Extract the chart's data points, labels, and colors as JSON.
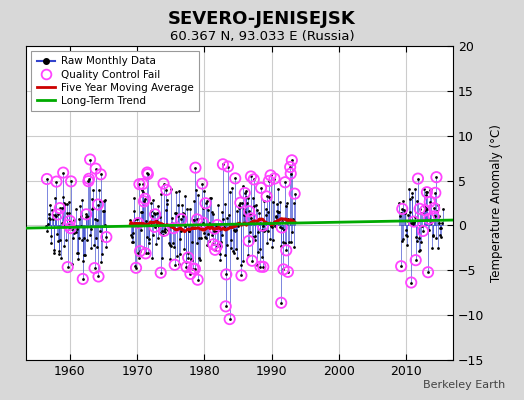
{
  "title": "SEVERO-JENISEJSK",
  "subtitle": "60.367 N, 93.033 E (Russia)",
  "ylabel": "Temperature Anomaly (°C)",
  "credit": "Berkeley Earth",
  "ylim": [
    -15,
    20
  ],
  "xlim": [
    1953.5,
    2017
  ],
  "yticks": [
    -15,
    -10,
    -5,
    0,
    5,
    10,
    15,
    20
  ],
  "xticks": [
    1960,
    1970,
    1980,
    1990,
    2000,
    2010
  ],
  "bg_color": "#d8d8d8",
  "plot_bg": "#ffffff",
  "raw_color": "#3344cc",
  "raw_marker_color": "#000000",
  "qc_fail_color": "#ff44ff",
  "moving_avg_color": "#cc0000",
  "trend_color": "#00aa00",
  "seed": 17
}
